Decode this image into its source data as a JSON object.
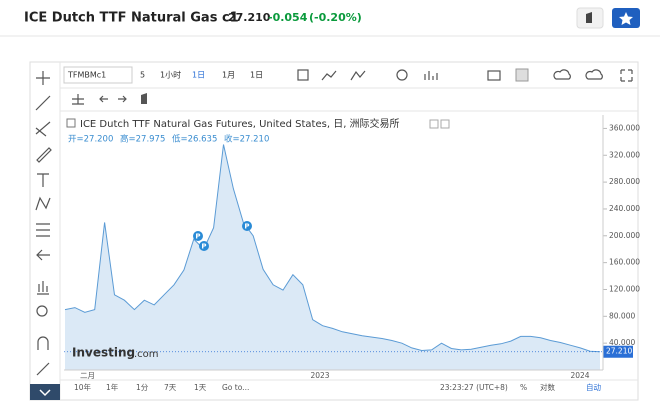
{
  "header": {
    "title": "ICE Dutch TTF Natural Gas c1",
    "price": "27.210",
    "change": "-0.054",
    "change_pct": "(-0.20%)"
  },
  "toolbar": {
    "symbol": "TFMBMc1",
    "items": [
      "5",
      "1小时",
      "1日",
      "1月",
      "1日"
    ]
  },
  "chart_data": {
    "type": "area",
    "title": "ICE Dutch TTF Natural Gas Futures, United States, 日, 洲际交易所",
    "ohlc": [
      "开=27.200",
      "高=27.975",
      "低=26.635",
      "收=27.210"
    ],
    "values": [
      90,
      93,
      86,
      90,
      220,
      112,
      104,
      90,
      104,
      97,
      112,
      127,
      149,
      195,
      180,
      212,
      336,
      270,
      220,
      200,
      150,
      127,
      119,
      142,
      127,
      75,
      66,
      62,
      57,
      54,
      51,
      49,
      47,
      44,
      40,
      33,
      29,
      30,
      40,
      32,
      30,
      31,
      34,
      37,
      39,
      43,
      50,
      50,
      48,
      44,
      41,
      37,
      33,
      28,
      27.21
    ],
    "color": "#5b9bd5",
    "ylim": [
      0,
      380
    ],
    "yticks": [
      {
        "value": 40,
        "label": "40.000"
      },
      {
        "value": 80,
        "label": "80.000"
      },
      {
        "value": 120,
        "label": "120.000"
      },
      {
        "value": 160,
        "label": "160.000"
      },
      {
        "value": 200,
        "label": "200.000"
      },
      {
        "value": 240,
        "label": "240.000"
      },
      {
        "value": 280,
        "label": "280.000"
      },
      {
        "value": 320,
        "label": "320.000"
      },
      {
        "value": 360,
        "label": "360.000"
      }
    ],
    "x_labels": [
      "二月",
      "2023",
      "2024"
    ],
    "last_label": "27.210",
    "markers": [
      "P",
      "P",
      "P"
    ],
    "watermark": "Investing",
    "watermark_suffix": ".com"
  },
  "footer": {
    "ranges": [
      "10年",
      "1年",
      "1分",
      "7天",
      "1天",
      "Go to..."
    ],
    "time": "23:23:27 (UTC+8)",
    "options": [
      "%",
      "对数",
      "自动"
    ]
  }
}
